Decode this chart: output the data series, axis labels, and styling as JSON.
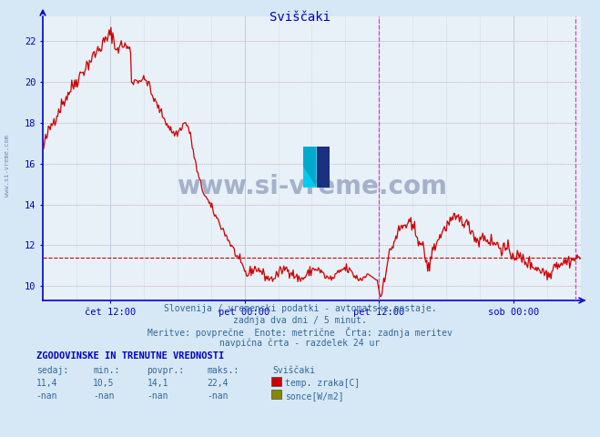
{
  "title": "Sviščaki",
  "title_color": "#0000cc",
  "bg_color": "#d6e8f5",
  "plot_bg_color": "#e8f0f8",
  "grid_color_dotted": "#c8d8e8",
  "grid_color_solid": "#b0c4d8",
  "line_color": "#cc0000",
  "dashed_hline_color": "#cc0000",
  "vline_color": "#cc44cc",
  "axis_color": "#0000cc",
  "tick_label_color": "#336699",
  "ylabel_values": [
    10,
    12,
    14,
    16,
    18,
    20,
    22
  ],
  "ylim": [
    9.3,
    23.2
  ],
  "xlim": [
    0,
    576
  ],
  "xtick_positions": [
    72,
    216,
    360,
    504
  ],
  "xtick_labels": [
    "čet 12:00",
    "pet 00:00",
    "pet 12:00",
    "sob 00:00"
  ],
  "vline_positions": [
    360,
    570
  ],
  "hline_value": 11.4,
  "watermark_text": "www.si-vreme.com",
  "watermark_color": "#1a2a6c",
  "watermark_alpha": 0.32,
  "sidebar_text": "www.si-vreme.com",
  "subtitle_lines": [
    "Slovenija / vremenski podatki - avtomatske postaje.",
    "zadnja dva dni / 5 minut.",
    "Meritve: povprečne  Enote: metrične  Črta: zadnja meritev",
    "navpična črta - razdelek 24 ur"
  ],
  "legend_header": "ZGODOVINSKE IN TRENUTNE VREDNOSTI",
  "legend_cols": [
    "sedaj:",
    "min.:",
    "povpr.:",
    "maks.:",
    "Sviščaki"
  ],
  "legend_row1": [
    "11,4",
    "10,5",
    "14,1",
    "22,4",
    "temp. zraka[C]"
  ],
  "legend_row2": [
    "-nan",
    "-nan",
    "-nan",
    "-nan",
    "sonce[W/m2]"
  ],
  "legend_color1": "#cc0000",
  "legend_color2": "#888800"
}
